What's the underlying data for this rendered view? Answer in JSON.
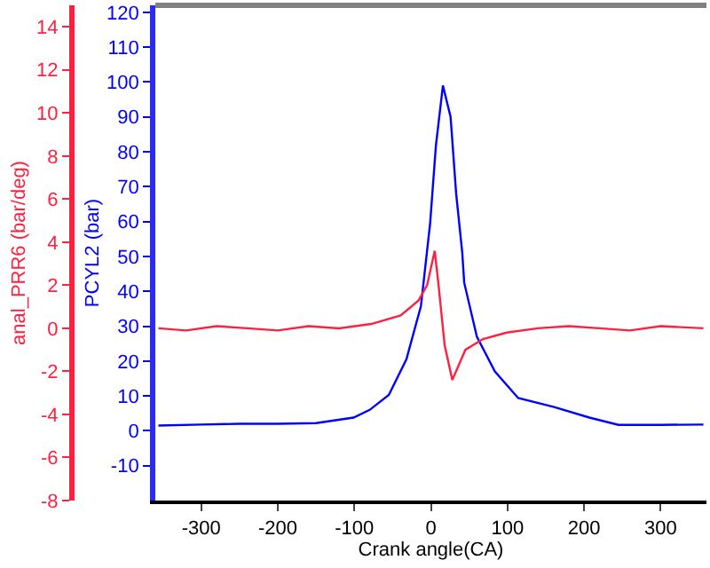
{
  "chart_data": {
    "type": "line",
    "xlabel": "Crank angle(CA)",
    "ylabel": "PCYL2 (bar)",
    "y2label": "anal_PRR6 (bar/deg)",
    "xlim": [
      -360,
      360
    ],
    "xticks": [
      -300,
      -200,
      -100,
      0,
      100,
      200,
      300
    ],
    "ylim": [
      -20,
      122
    ],
    "yticks": [
      -10,
      0,
      10,
      20,
      30,
      40,
      50,
      60,
      70,
      80,
      90,
      100,
      110,
      120
    ],
    "y2lim": [
      -8,
      15
    ],
    "y2ticks": [
      -8,
      -6,
      -4,
      -2,
      0,
      2,
      4,
      6,
      8,
      10,
      12,
      14
    ],
    "grid": false,
    "marker": "none",
    "line_style": "solid",
    "series": [
      {
        "color": "#0000ff",
        "x": [
          -356,
          -300,
          -250,
          -200,
          -150,
          -101,
          -80,
          -55,
          -32,
          -13,
          -1,
          6.5,
          15.7,
          25.7,
          33,
          41,
          43.5,
          60,
          83.6,
          114,
          161,
          207,
          245,
          300,
          356
        ],
        "values": [
          1.5,
          1.8,
          2,
          2,
          2.2,
          3.8,
          6,
          10.3,
          20.5,
          35.8,
          59.5,
          81.7,
          99,
          90,
          68,
          51,
          42.5,
          27,
          17,
          9.4,
          6.8,
          3.8,
          1.7,
          1.7,
          1.8
        ]
      },
      {
        "color": "#ff2040",
        "axis": "y2",
        "x": [
          -356,
          -320,
          -280,
          -240,
          -200,
          -160,
          -120,
          -78,
          -39.5,
          -16,
          -5,
          5,
          10,
          18,
          28,
          45,
          68,
          99,
          140,
          180,
          220,
          260,
          300,
          356
        ],
        "values": [
          0,
          -0.1,
          0.1,
          0,
          -0.1,
          0.1,
          0,
          0.2,
          0.6,
          1.3,
          2,
          3.6,
          2,
          -0.8,
          -2.4,
          -1,
          -0.5,
          -0.2,
          0,
          0.1,
          0,
          -0.1,
          0.1,
          0
        ]
      }
    ]
  }
}
